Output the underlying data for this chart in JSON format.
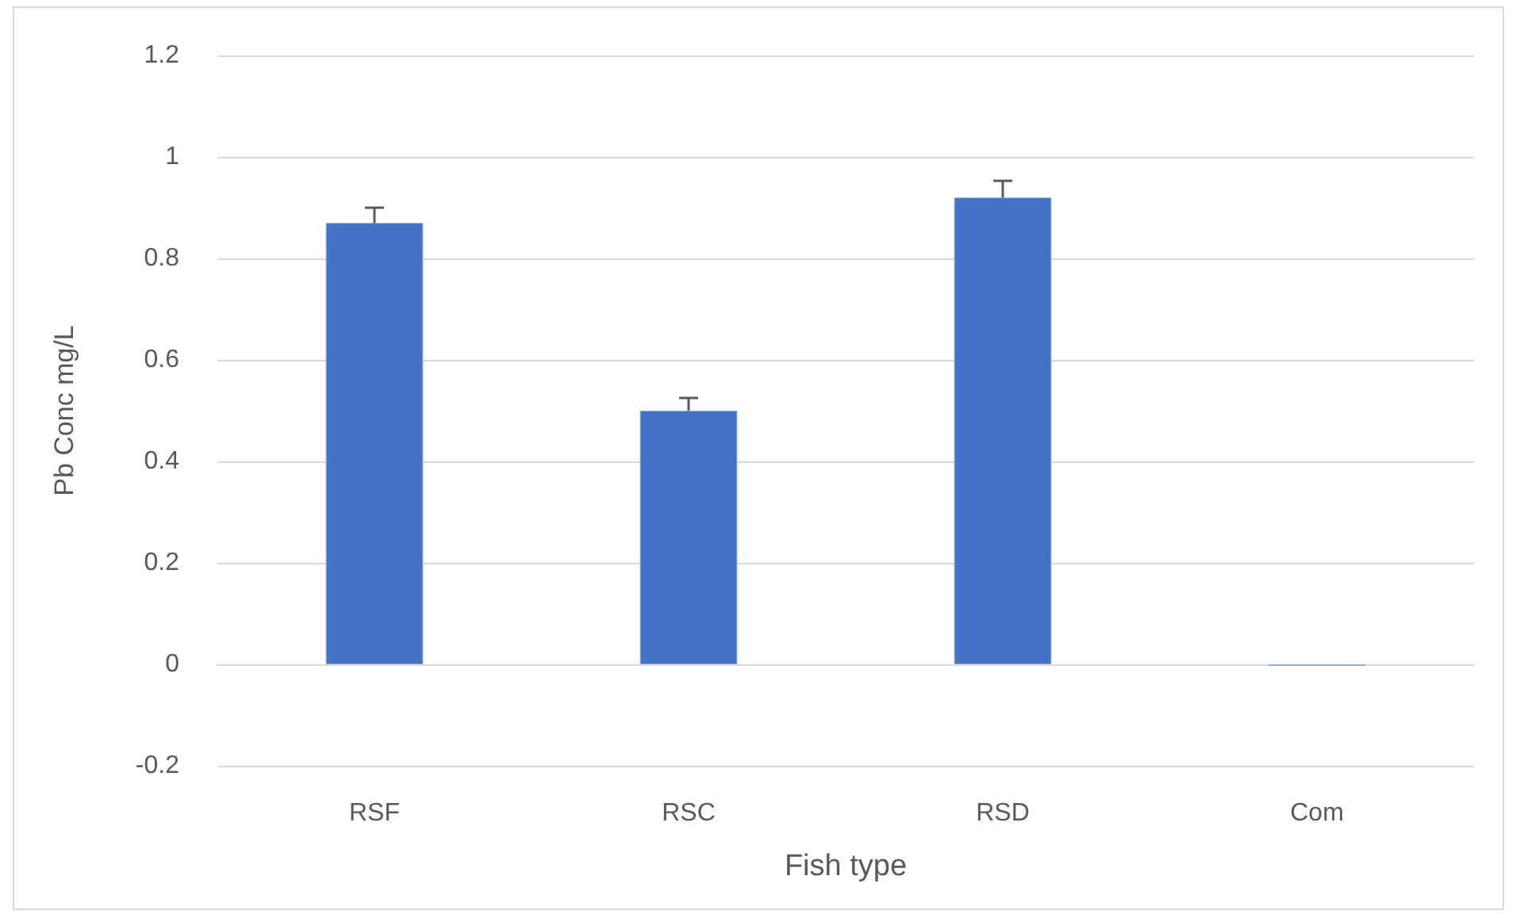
{
  "chart_data": {
    "type": "bar",
    "xlabel": "Fish type",
    "ylabel": "Pb Conc mg/L",
    "categories": [
      "RSF",
      "RSC",
      "RSD",
      "Com"
    ],
    "values": [
      0.87,
      0.5,
      0.92,
      -0.003
    ],
    "errors": [
      [
        0.87,
        0.9
      ],
      [
        0.5,
        0.525
      ],
      [
        0.92,
        0.953
      ],
      null
    ],
    "color": "#4472c4",
    "ylim": [
      -0.2,
      1.2
    ],
    "yticks": [
      -0.2,
      0,
      0.2,
      0.4,
      0.6,
      0.8,
      1,
      1.2
    ],
    "grid": "y"
  }
}
